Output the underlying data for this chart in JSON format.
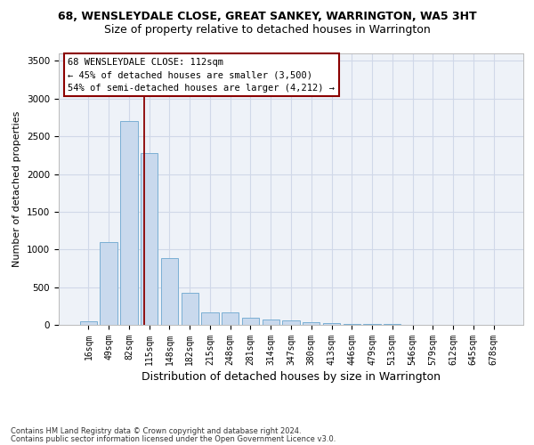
{
  "title": "68, WENSLEYDALE CLOSE, GREAT SANKEY, WARRINGTON, WA5 3HT",
  "subtitle": "Size of property relative to detached houses in Warrington",
  "xlabel": "Distribution of detached houses by size in Warrington",
  "ylabel": "Number of detached properties",
  "bar_color": "#c9d9ed",
  "bar_edge_color": "#7bafd4",
  "grid_color": "#d0d8e8",
  "bg_color": "#eef2f8",
  "categories": [
    "16sqm",
    "49sqm",
    "82sqm",
    "115sqm",
    "148sqm",
    "182sqm",
    "215sqm",
    "248sqm",
    "281sqm",
    "314sqm",
    "347sqm",
    "380sqm",
    "413sqm",
    "446sqm",
    "479sqm",
    "513sqm",
    "546sqm",
    "579sqm",
    "612sqm",
    "645sqm",
    "678sqm"
  ],
  "values": [
    50,
    1100,
    2700,
    2280,
    880,
    420,
    170,
    165,
    90,
    65,
    55,
    35,
    25,
    10,
    8,
    6,
    5,
    4,
    3,
    2,
    2
  ],
  "ylim": [
    0,
    3600
  ],
  "yticks": [
    0,
    500,
    1000,
    1500,
    2000,
    2500,
    3000,
    3500
  ],
  "property_line_x": 2.75,
  "annotation_title": "68 WENSLEYDALE CLOSE: 112sqm",
  "annotation_line1": "← 45% of detached houses are smaller (3,500)",
  "annotation_line2": "54% of semi-detached houses are larger (4,212) →",
  "annotation_color": "#8b0000",
  "footer_line1": "Contains HM Land Registry data © Crown copyright and database right 2024.",
  "footer_line2": "Contains public sector information licensed under the Open Government Licence v3.0.",
  "title_fontsize": 9,
  "subtitle_fontsize": 9,
  "ylabel_fontsize": 8,
  "xlabel_fontsize": 9,
  "tick_fontsize": 7,
  "annotation_fontsize": 7.5,
  "footer_fontsize": 6
}
